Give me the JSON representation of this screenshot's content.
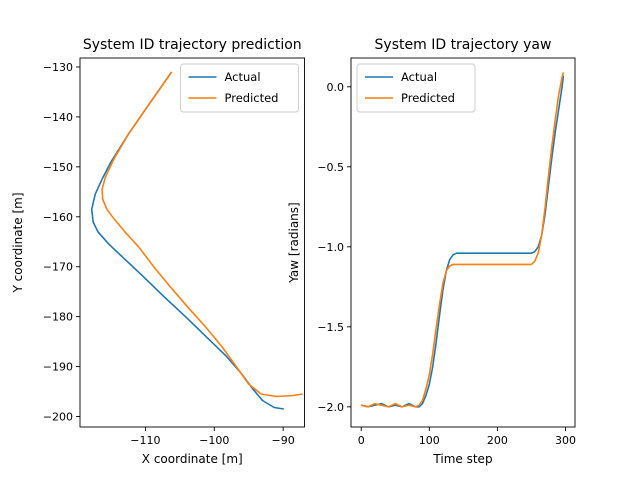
{
  "chart_data": [
    {
      "type": "line",
      "title": "System ID trajectory prediction",
      "xlabel": "X coordinate [m]",
      "ylabel": "Y coordinate [m]",
      "xlim": [
        -119.5,
        -86.9
      ],
      "ylim": [
        -202.1,
        -128.2
      ],
      "xticks": [
        -110,
        -100,
        -90
      ],
      "xtick_labels": [
        "−110",
        "−100",
        "−90"
      ],
      "yticks": [
        -200,
        -190,
        -180,
        -170,
        -160,
        -150,
        -140,
        -130
      ],
      "ytick_labels": [
        "−200",
        "−190",
        "−180",
        "−170",
        "−160",
        "−150",
        "−140",
        "−130"
      ],
      "legend_position": "top-right",
      "series": [
        {
          "name": "Actual",
          "color": "#1f77b4",
          "x": [
            -106.2,
            -109.5,
            -112.5,
            -115.0,
            -116.3,
            -117.3,
            -117.8,
            -117.6,
            -116.9,
            -115.3,
            -113.0,
            -110.3,
            -107.3,
            -104.2,
            -101.2,
            -98.2,
            -96.0,
            -94.4,
            -93.0,
            -91.3,
            -89.9
          ],
          "y": [
            -131.0,
            -137.5,
            -143.5,
            -149.0,
            -152.5,
            -155.5,
            -158.5,
            -161.0,
            -163.0,
            -165.5,
            -168.5,
            -172.0,
            -176.0,
            -180.0,
            -184.0,
            -188.0,
            -191.5,
            -194.5,
            -196.8,
            -198.2,
            -198.5
          ]
        },
        {
          "name": "Predicted",
          "color": "#ff7f0e",
          "x": [
            -106.2,
            -109.5,
            -112.5,
            -114.6,
            -115.8,
            -116.3,
            -116.2,
            -115.6,
            -114.5,
            -113.0,
            -111.0,
            -108.8,
            -106.4,
            -103.9,
            -101.3,
            -98.9,
            -96.8,
            -95.0,
            -93.2,
            -91.0,
            -88.5,
            -87.2
          ],
          "y": [
            -131.0,
            -137.5,
            -143.5,
            -148.5,
            -152.0,
            -154.5,
            -156.5,
            -158.5,
            -160.5,
            -163.0,
            -166.0,
            -170.0,
            -174.0,
            -178.0,
            -182.0,
            -186.0,
            -190.0,
            -193.5,
            -195.5,
            -196.0,
            -195.8,
            -195.5
          ]
        }
      ]
    },
    {
      "type": "line",
      "title": "System ID trajectory yaw",
      "xlabel": "Time step",
      "ylabel": "Yaw [radians]",
      "xlim": [
        -15,
        314
      ],
      "ylim": [
        -2.126,
        0.18
      ],
      "xticks": [
        0,
        100,
        200,
        300
      ],
      "xtick_labels": [
        "0",
        "100",
        "200",
        "300"
      ],
      "yticks": [
        -2.0,
        -1.5,
        -1.0,
        -0.5,
        0.0
      ],
      "ytick_labels": [
        "−2.0",
        "−1.5",
        "−1.0",
        "−0.5",
        "0.0"
      ],
      "legend_position": "top-left",
      "series": [
        {
          "name": "Actual",
          "color": "#1f77b4",
          "x": [
            0,
            10,
            20,
            30,
            40,
            50,
            60,
            70,
            80,
            85,
            90,
            95,
            100,
            105,
            110,
            115,
            120,
            125,
            130,
            135,
            140,
            145,
            150,
            160,
            180,
            200,
            220,
            240,
            250,
            255,
            260,
            265,
            270,
            275,
            280,
            285,
            290,
            295,
            297
          ],
          "y": [
            -1.99,
            -2.0,
            -1.99,
            -1.98,
            -2.0,
            -1.99,
            -2.0,
            -1.98,
            -2.0,
            -2.0,
            -1.98,
            -1.93,
            -1.86,
            -1.75,
            -1.6,
            -1.43,
            -1.27,
            -1.15,
            -1.08,
            -1.05,
            -1.04,
            -1.04,
            -1.04,
            -1.04,
            -1.04,
            -1.04,
            -1.04,
            -1.04,
            -1.04,
            -1.03,
            -1.0,
            -0.93,
            -0.8,
            -0.62,
            -0.44,
            -0.28,
            -0.14,
            0.0,
            0.07
          ]
        },
        {
          "name": "Predicted",
          "color": "#ff7f0e",
          "x": [
            0,
            10,
            20,
            30,
            40,
            50,
            60,
            70,
            80,
            85,
            90,
            95,
            100,
            105,
            110,
            115,
            120,
            125,
            130,
            135,
            140,
            145,
            150,
            160,
            180,
            200,
            220,
            240,
            250,
            255,
            260,
            265,
            270,
            275,
            280,
            285,
            290,
            295,
            297
          ],
          "y": [
            -1.99,
            -2.0,
            -1.98,
            -1.99,
            -2.0,
            -1.98,
            -2.0,
            -1.99,
            -2.0,
            -1.99,
            -1.96,
            -1.89,
            -1.8,
            -1.67,
            -1.51,
            -1.36,
            -1.23,
            -1.15,
            -1.12,
            -1.11,
            -1.11,
            -1.11,
            -1.11,
            -1.11,
            -1.11,
            -1.11,
            -1.11,
            -1.11,
            -1.11,
            -1.09,
            -1.04,
            -0.93,
            -0.76,
            -0.56,
            -0.37,
            -0.2,
            -0.05,
            0.06,
            0.09
          ]
        }
      ]
    }
  ]
}
